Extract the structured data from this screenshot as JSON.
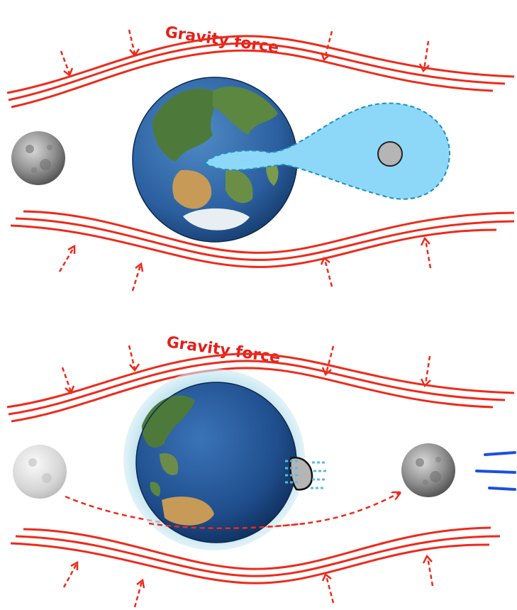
{
  "panels": [
    {
      "id": "top",
      "label": "Gravity force"
    },
    {
      "id": "bottom",
      "label": "Gravity force"
    }
  ],
  "colors": {
    "force_line": "#ee2a1b",
    "label": "#e3201b",
    "tidal_blob": "#8dd8f8",
    "tidal_blob_outline": "#1e8fc0",
    "ocean_deep": "#1d4f8f",
    "ocean_light": "#3f7fc2",
    "land_green": "#4d7a3a",
    "land_desert": "#c79a58",
    "ice": "#e8eef2",
    "atmosphere_halo": "#9fd3e6",
    "moon_grey": "#8a8a8a",
    "motion_lines": "#1a4fe0"
  },
  "icons": [
    "moon-icon",
    "earth-globe-icon",
    "tidal-bulge-icon",
    "gravity-arrow-icon",
    "motion-lines-icon",
    "orbit-path-arrow-icon"
  ]
}
